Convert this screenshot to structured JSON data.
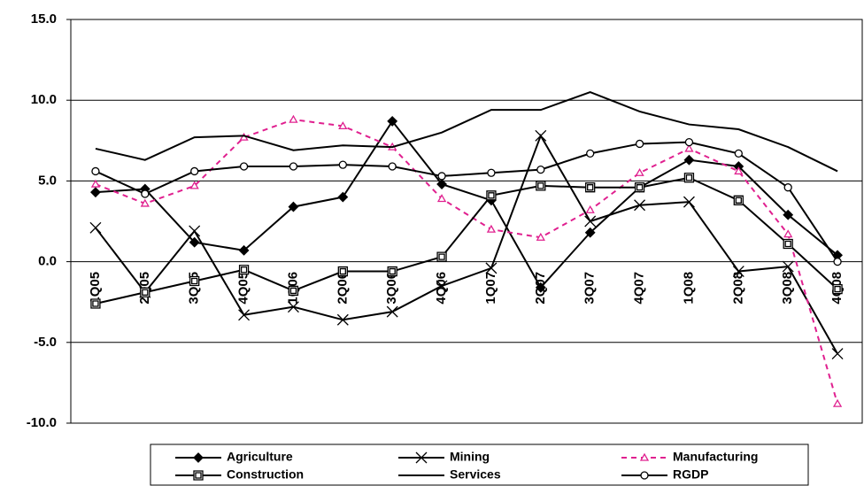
{
  "chart_data": {
    "type": "line",
    "categories": [
      "1Q05",
      "2Q05",
      "3Q05",
      "4Q05",
      "1Q06",
      "2Q06",
      "3Q06",
      "4Q06",
      "1Q07",
      "2Q07",
      "3Q07",
      "4Q07",
      "1Q08",
      "2Q08",
      "3Q08",
      "4Q08"
    ],
    "ylim": [
      -10,
      15
    ],
    "yticks": [
      {
        "value": -10,
        "label": "-10.0"
      },
      {
        "value": -5,
        "label": "-5.0"
      },
      {
        "value": 0,
        "label": "0.0"
      },
      {
        "value": 5,
        "label": "5.0"
      },
      {
        "value": 10,
        "label": "10.0"
      },
      {
        "value": 15,
        "label": "15.0"
      }
    ],
    "grid": true,
    "legend": "bottom",
    "series": [
      {
        "name": "Agriculture",
        "color": "#000000",
        "marker": "diamond",
        "values": [
          4.3,
          4.5,
          1.2,
          0.7,
          3.4,
          4.0,
          8.7,
          4.8,
          3.8,
          -1.6,
          1.8,
          4.6,
          6.3,
          5.9,
          2.9,
          0.4
        ]
      },
      {
        "name": "Mining",
        "color": "#000000",
        "marker": "x",
        "values": [
          2.1,
          -1.9,
          1.9,
          -3.3,
          -2.8,
          -3.6,
          -3.1,
          -1.5,
          -0.4,
          7.8,
          2.5,
          3.5,
          3.7,
          -0.6,
          -0.3,
          -5.7
        ]
      },
      {
        "name": "Manufacturing",
        "color": "#e0208f",
        "marker": "triangle",
        "dashed": true,
        "values": [
          4.8,
          3.6,
          4.7,
          7.7,
          8.8,
          8.4,
          7.1,
          3.9,
          2.0,
          1.5,
          3.2,
          5.5,
          7.0,
          5.6,
          1.7,
          -8.8
        ]
      },
      {
        "name": "Construction",
        "color": "#000000",
        "marker": "square",
        "values": [
          -2.6,
          -1.9,
          -1.2,
          -0.5,
          -1.8,
          -0.6,
          -0.6,
          0.3,
          4.1,
          4.7,
          4.6,
          4.6,
          5.2,
          3.8,
          1.1,
          -1.7
        ]
      },
      {
        "name": "Services",
        "color": "#000000",
        "marker": "none",
        "values": [
          7.0,
          6.3,
          7.7,
          7.8,
          6.9,
          7.2,
          7.1,
          8.0,
          9.4,
          9.4,
          10.5,
          9.3,
          8.5,
          8.2,
          7.1,
          5.6
        ]
      },
      {
        "name": "RGDP",
        "color": "#000000",
        "marker": "circle",
        "values": [
          5.6,
          4.2,
          5.6,
          5.9,
          5.9,
          6.0,
          5.9,
          5.3,
          5.5,
          5.7,
          6.7,
          7.3,
          7.4,
          6.7,
          4.6,
          0.0
        ]
      }
    ]
  }
}
